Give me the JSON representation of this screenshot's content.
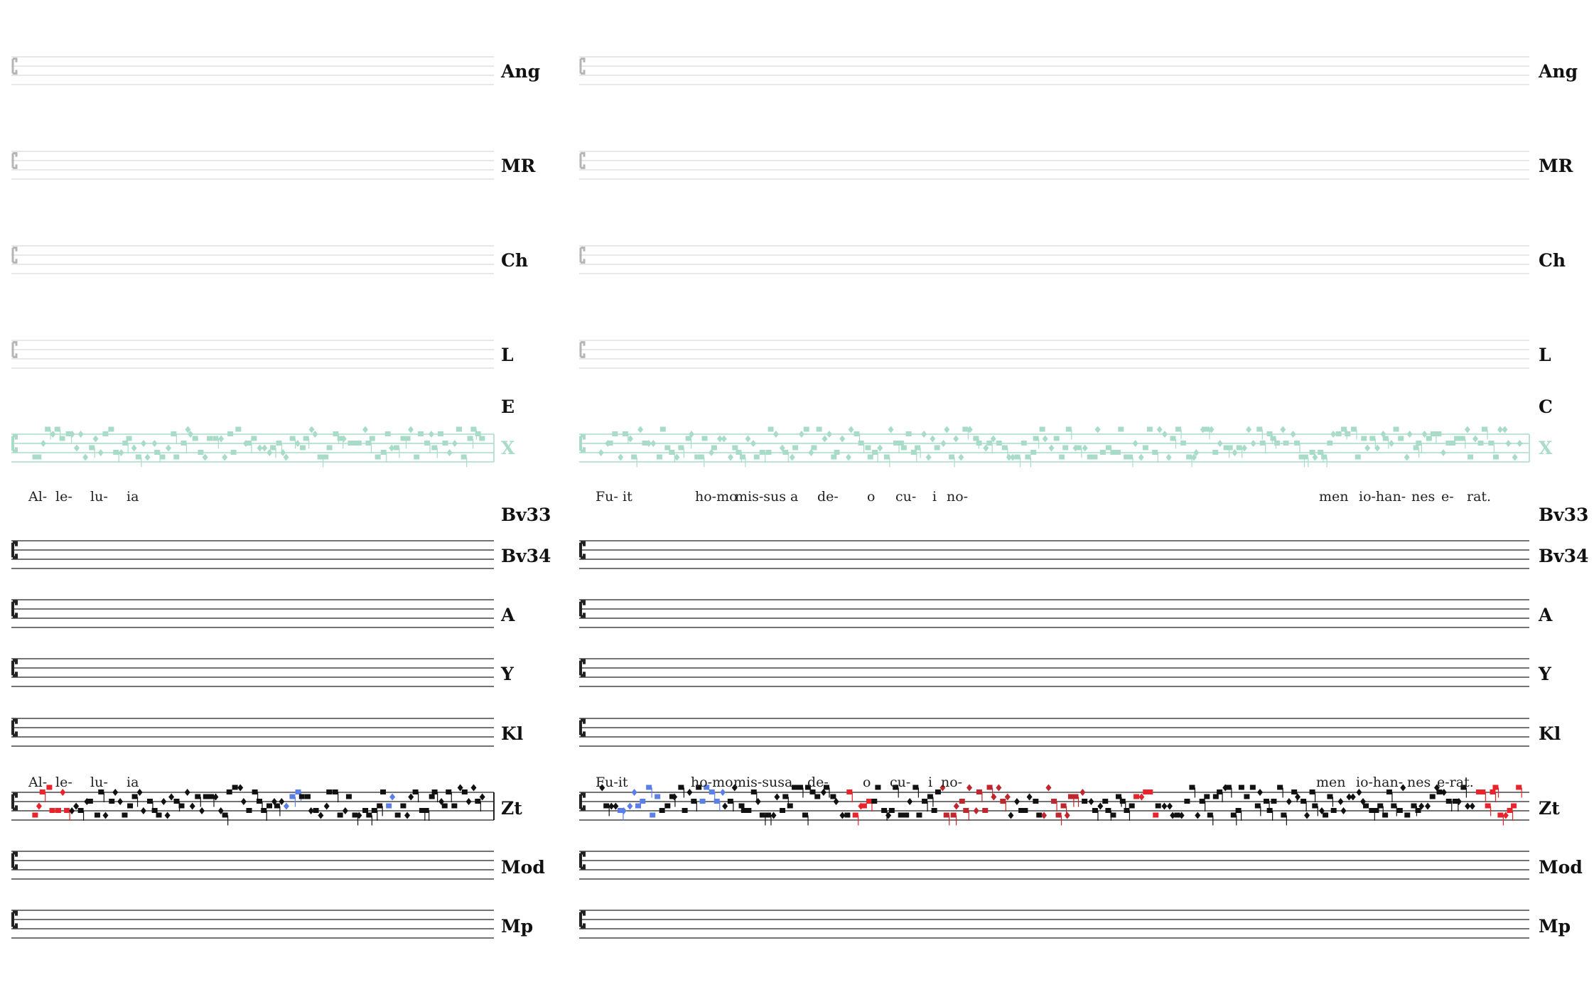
{
  "colors": {
    "staff_faint": "#d9d9d9",
    "staff_teal": "#a8dcc8",
    "staff_black": "#222222",
    "neume_black": "#111111",
    "neume_teal": "#a8dcc8",
    "neume_red": "#e8232b",
    "neume_darkred": "#c0262d",
    "neume_blue": "#5b7fe8"
  },
  "columns": [
    {
      "staves": [
        {
          "label": "Ang",
          "style": "faint"
        },
        {
          "label": "MR",
          "style": "faint"
        },
        {
          "label": "Ch",
          "style": "faint"
        },
        {
          "label": "L",
          "style": "faint"
        },
        {
          "label": "E",
          "style": "label-only"
        },
        {
          "label": "X",
          "style": "teal"
        },
        {
          "label": "Bv33",
          "style": "label-only"
        },
        {
          "label": "Bv34",
          "style": "black"
        },
        {
          "label": "A",
          "style": "black"
        },
        {
          "label": "Y",
          "style": "black"
        },
        {
          "label": "Kl",
          "style": "black"
        },
        {
          "label": "Zt",
          "style": "black"
        },
        {
          "label": "Mod",
          "style": "black"
        },
        {
          "label": "Mp",
          "style": "black"
        }
      ],
      "lyrics_upper": [
        "Al-",
        "le-",
        "lu-",
        "ia"
      ],
      "lyrics_lower": [
        "Al-",
        "le-",
        "lu-",
        "ia"
      ]
    },
    {
      "staves": [
        {
          "label": "Ang",
          "style": "faint"
        },
        {
          "label": "MR",
          "style": "faint"
        },
        {
          "label": "Ch",
          "style": "faint"
        },
        {
          "label": "L",
          "style": "faint"
        },
        {
          "label": "C",
          "style": "label-only"
        },
        {
          "label": "X",
          "style": "teal"
        },
        {
          "label": "Bv33",
          "style": "label-only"
        },
        {
          "label": "Bv34",
          "style": "black"
        },
        {
          "label": "A",
          "style": "black"
        },
        {
          "label": "Y",
          "style": "black"
        },
        {
          "label": "Kl",
          "style": "black"
        },
        {
          "label": "Zt",
          "style": "black"
        },
        {
          "label": "Mod",
          "style": "black"
        },
        {
          "label": "Mp",
          "style": "black"
        }
      ],
      "lyrics_upper": [
        "Fu-",
        "it",
        "ho-mo",
        "mis-sus",
        "a",
        "de-",
        "o",
        "cu-",
        "i",
        "no-",
        "men",
        "io-han-",
        "nes",
        "e-",
        "rat."
      ],
      "lyrics_lower": [
        "Fu-it",
        "ho-mo",
        "mis-sus",
        "a",
        "de-",
        "o",
        "cu-",
        "i",
        "no-",
        "men",
        "io-han-",
        "nes",
        "e-rat."
      ]
    }
  ]
}
